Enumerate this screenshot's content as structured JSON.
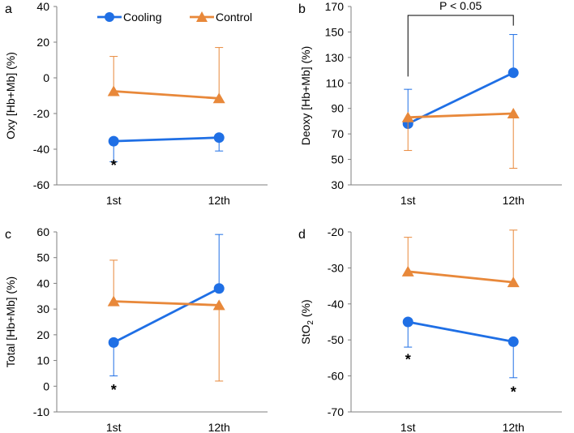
{
  "legend": {
    "series": [
      {
        "name": "Cooling",
        "color": "#1f6fe5",
        "marker": "circle"
      },
      {
        "name": "Control",
        "color": "#e8883a",
        "marker": "triangle"
      }
    ]
  },
  "chart_data": [
    {
      "panel": "a",
      "type": "line",
      "ylabel_parts": [
        {
          "t": "Oxy [Hb+Mb] (%)",
          "sub": false
        }
      ],
      "categories": [
        "1st",
        "12th"
      ],
      "ylim": [
        -60,
        40
      ],
      "yticks": [
        -60,
        -40,
        -20,
        0,
        20,
        40
      ],
      "series": [
        {
          "name": "Cooling",
          "values": [
            -35.5,
            -33.5
          ],
          "err": [
            [
              -47,
              null
            ],
            [
              -41,
              null
            ]
          ]
        },
        {
          "name": "Control",
          "values": [
            -7.5,
            -11.5
          ],
          "err": [
            [
              null,
              12
            ],
            [
              null,
              17
            ]
          ]
        }
      ],
      "annotations": [
        {
          "text": "*",
          "category": 0,
          "y": -49
        }
      ]
    },
    {
      "panel": "b",
      "type": "line",
      "ylabel_parts": [
        {
          "t": "Deoxy [Hb+Mb] (%)",
          "sub": false
        }
      ],
      "categories": [
        "1st",
        "12th"
      ],
      "ylim": [
        30,
        170
      ],
      "yticks": [
        30,
        50,
        70,
        90,
        110,
        130,
        150,
        170
      ],
      "series": [
        {
          "name": "Cooling",
          "values": [
            78,
            118
          ],
          "err": [
            [
              null,
              105
            ],
            [
              null,
              148
            ]
          ]
        },
        {
          "name": "Control",
          "values": [
            83,
            86
          ],
          "err": [
            [
              57,
              null
            ],
            [
              43,
              null
            ]
          ]
        }
      ],
      "bracket": {
        "text": "P < 0.05",
        "top": 163,
        "left_bottom": 115,
        "right_bottom": 155
      }
    },
    {
      "panel": "c",
      "type": "line",
      "ylabel_parts": [
        {
          "t": "Total [Hb+Mb] (%)",
          "sub": false
        }
      ],
      "categories": [
        "1st",
        "12th"
      ],
      "ylim": [
        -10,
        60
      ],
      "yticks": [
        -10,
        0,
        10,
        20,
        30,
        40,
        50,
        60
      ],
      "series": [
        {
          "name": "Cooling",
          "values": [
            17,
            38
          ],
          "err": [
            [
              4,
              null
            ],
            [
              null,
              59
            ]
          ]
        },
        {
          "name": "Control",
          "values": [
            33,
            31.5
          ],
          "err": [
            [
              null,
              49
            ],
            [
              2,
              null
            ]
          ]
        }
      ],
      "annotations": [
        {
          "text": "*",
          "category": 0,
          "y": -1.5
        }
      ]
    },
    {
      "panel": "d",
      "type": "line",
      "ylabel_parts": [
        {
          "t": "StO",
          "sub": false
        },
        {
          "t": "2",
          "sub": true
        },
        {
          "t": " (%)",
          "sub": false
        }
      ],
      "categories": [
        "1st",
        "12th"
      ],
      "ylim": [
        -70,
        -20
      ],
      "yticks": [
        -70,
        -60,
        -50,
        -40,
        -30,
        -20
      ],
      "series": [
        {
          "name": "Cooling",
          "values": [
            -45,
            -50.5
          ],
          "err": [
            [
              -52,
              null
            ],
            [
              -60.5,
              null
            ]
          ]
        },
        {
          "name": "Control",
          "values": [
            -31,
            -34
          ],
          "err": [
            [
              null,
              -21.5
            ],
            [
              null,
              -19.5
            ]
          ]
        }
      ],
      "annotations": [
        {
          "text": "*",
          "category": 0,
          "y": -55.5
        },
        {
          "text": "*",
          "category": 1,
          "y": -64.5
        }
      ]
    }
  ]
}
